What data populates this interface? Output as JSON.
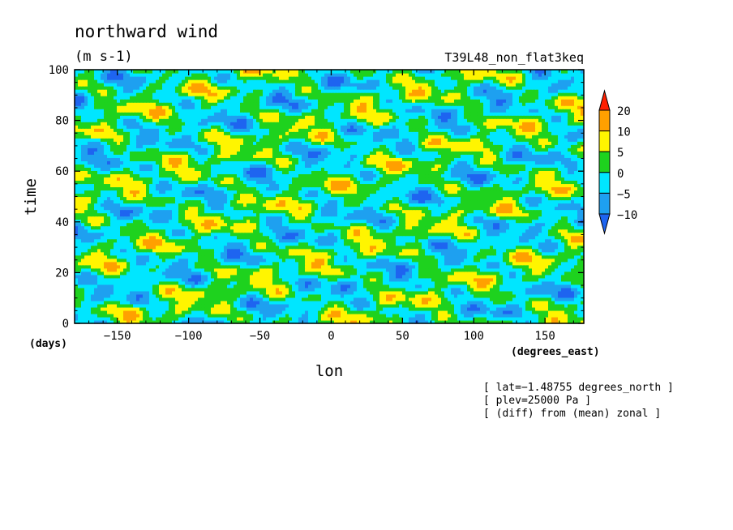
{
  "chart_data": {
    "type": "heatmap",
    "title": "northward wind",
    "units": "(m s-1)",
    "run_name": "T39L48_non_flat3keq",
    "xlabel": "lon",
    "x_units": "(degrees_east)",
    "ylabel": "time",
    "y_units": "(days)",
    "xlim": [
      -180,
      177.2
    ],
    "ylim": [
      0,
      100
    ],
    "x_ticks": [
      -150,
      -100,
      -50,
      0,
      50,
      100,
      150
    ],
    "y_ticks": [
      0,
      20,
      40,
      60,
      80,
      100
    ],
    "x_tick_labels": [
      "−150",
      "−100",
      "−50",
      "0",
      "50",
      "100",
      "150"
    ],
    "y_tick_labels": [
      "0",
      "20",
      "40",
      "60",
      "80",
      "100"
    ],
    "colorbar": {
      "levels": [
        -10,
        -5,
        0,
        5,
        10,
        20
      ],
      "level_labels": [
        "−10",
        "−5",
        "0",
        "5",
        "10",
        "20"
      ],
      "colors": [
        "#1e64f0",
        "#1ea0f0",
        "#00e6ff",
        "#1ed21e",
        "#fff500",
        "#ffa000",
        "#ff2000"
      ]
    },
    "annotations": [
      "[ lat=−1.48755 degrees_north ]",
      "[ plev=25000 Pa ]",
      "[ (diff) from (mean) zonal ]"
    ]
  }
}
